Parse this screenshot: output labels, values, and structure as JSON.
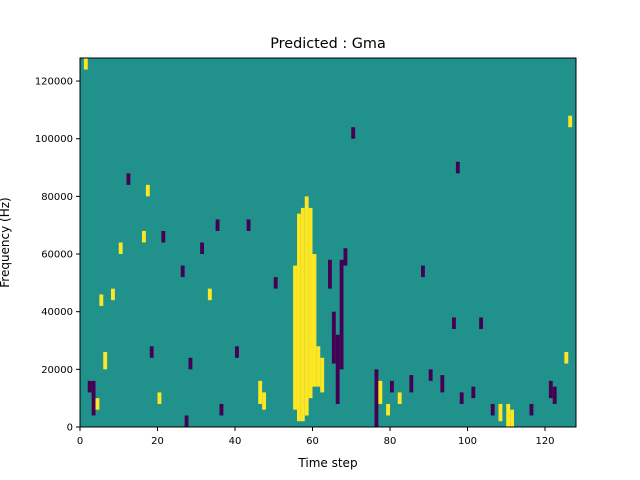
{
  "chart_data": {
    "type": "heatmap",
    "title": "Predicted : Gma",
    "xlabel": "Time step",
    "ylabel": "Frequency (Hz)",
    "xlim": [
      0,
      128
    ],
    "ylim": [
      0,
      128000
    ],
    "x_ticks": [
      0,
      20,
      40,
      60,
      80,
      100,
      120
    ],
    "y_ticks": [
      0,
      20000,
      40000,
      60000,
      80000,
      100000,
      120000
    ],
    "x_tick_labels": [
      "0",
      "20",
      "40",
      "60",
      "80",
      "100",
      "120"
    ],
    "y_tick_labels": [
      "0",
      "20000",
      "40000",
      "60000",
      "80000",
      "100000",
      "120000"
    ],
    "grid": false,
    "colormap": "viridis",
    "background_value": 0,
    "colors": {
      "background": "#21918c",
      "high": "#fde725",
      "low": "#440154"
    },
    "levels": [
      -1,
      0,
      1
    ],
    "time_bins": 128,
    "freq_bin_hz": 2000,
    "cells": [
      {
        "t": 1,
        "f_from": 124000,
        "f_to": 128000,
        "v": 1
      },
      {
        "t": 2,
        "f_from": 12000,
        "f_to": 16000,
        "v": -1
      },
      {
        "t": 3,
        "f_from": 4000,
        "f_to": 16000,
        "v": -1
      },
      {
        "t": 4,
        "f_from": 6000,
        "f_to": 10000,
        "v": 1
      },
      {
        "t": 5,
        "f_from": 42000,
        "f_to": 46000,
        "v": 1
      },
      {
        "t": 6,
        "f_from": 20000,
        "f_to": 26000,
        "v": 1
      },
      {
        "t": 8,
        "f_from": 44000,
        "f_to": 48000,
        "v": 1
      },
      {
        "t": 10,
        "f_from": 60000,
        "f_to": 64000,
        "v": 1
      },
      {
        "t": 12,
        "f_from": 84000,
        "f_to": 88000,
        "v": -1
      },
      {
        "t": 16,
        "f_from": 64000,
        "f_to": 68000,
        "v": 1
      },
      {
        "t": 17,
        "f_from": 80000,
        "f_to": 84000,
        "v": 1
      },
      {
        "t": 18,
        "f_from": 24000,
        "f_to": 28000,
        "v": -1
      },
      {
        "t": 20,
        "f_from": 8000,
        "f_to": 12000,
        "v": 1
      },
      {
        "t": 21,
        "f_from": 64000,
        "f_to": 68000,
        "v": -1
      },
      {
        "t": 26,
        "f_from": 52000,
        "f_to": 56000,
        "v": -1
      },
      {
        "t": 27,
        "f_from": 0,
        "f_to": 4000,
        "v": -1
      },
      {
        "t": 28,
        "f_from": 20000,
        "f_to": 24000,
        "v": -1
      },
      {
        "t": 31,
        "f_from": 60000,
        "f_to": 64000,
        "v": -1
      },
      {
        "t": 33,
        "f_from": 44000,
        "f_to": 48000,
        "v": 1
      },
      {
        "t": 35,
        "f_from": 68000,
        "f_to": 72000,
        "v": -1
      },
      {
        "t": 36,
        "f_from": 4000,
        "f_to": 8000,
        "v": -1
      },
      {
        "t": 40,
        "f_from": 24000,
        "f_to": 28000,
        "v": -1
      },
      {
        "t": 43,
        "f_from": 68000,
        "f_to": 72000,
        "v": -1
      },
      {
        "t": 46,
        "f_from": 8000,
        "f_to": 16000,
        "v": 1
      },
      {
        "t": 47,
        "f_from": 6000,
        "f_to": 12000,
        "v": 1
      },
      {
        "t": 50,
        "f_from": 48000,
        "f_to": 52000,
        "v": -1
      },
      {
        "t": 55,
        "f_from": 6000,
        "f_to": 56000,
        "v": 1
      },
      {
        "t": 56,
        "f_from": 2000,
        "f_to": 74000,
        "v": 1
      },
      {
        "t": 57,
        "f_from": 2000,
        "f_to": 76000,
        "v": 1
      },
      {
        "t": 58,
        "f_from": 4000,
        "f_to": 80000,
        "v": 1
      },
      {
        "t": 59,
        "f_from": 10000,
        "f_to": 76000,
        "v": 1
      },
      {
        "t": 60,
        "f_from": 14000,
        "f_to": 60000,
        "v": 1
      },
      {
        "t": 61,
        "f_from": 14000,
        "f_to": 28000,
        "v": 1
      },
      {
        "t": 62,
        "f_from": 12000,
        "f_to": 24000,
        "v": 1
      },
      {
        "t": 64,
        "f_from": 48000,
        "f_to": 58000,
        "v": -1
      },
      {
        "t": 65,
        "f_from": 22000,
        "f_to": 40000,
        "v": -1
      },
      {
        "t": 66,
        "f_from": 8000,
        "f_to": 32000,
        "v": -1
      },
      {
        "t": 67,
        "f_from": 20000,
        "f_to": 58000,
        "v": -1
      },
      {
        "t": 68,
        "f_from": 56000,
        "f_to": 62000,
        "v": -1
      },
      {
        "t": 70,
        "f_from": 100000,
        "f_to": 104000,
        "v": -1
      },
      {
        "t": 76,
        "f_from": 0,
        "f_to": 20000,
        "v": -1
      },
      {
        "t": 77,
        "f_from": 8000,
        "f_to": 16000,
        "v": 1
      },
      {
        "t": 79,
        "f_from": 4000,
        "f_to": 8000,
        "v": 1
      },
      {
        "t": 80,
        "f_from": 12000,
        "f_to": 16000,
        "v": -1
      },
      {
        "t": 82,
        "f_from": 8000,
        "f_to": 12000,
        "v": 1
      },
      {
        "t": 85,
        "f_from": 12000,
        "f_to": 18000,
        "v": -1
      },
      {
        "t": 88,
        "f_from": 52000,
        "f_to": 56000,
        "v": -1
      },
      {
        "t": 90,
        "f_from": 16000,
        "f_to": 20000,
        "v": -1
      },
      {
        "t": 93,
        "f_from": 12000,
        "f_to": 18000,
        "v": -1
      },
      {
        "t": 96,
        "f_from": 34000,
        "f_to": 38000,
        "v": -1
      },
      {
        "t": 97,
        "f_from": 88000,
        "f_to": 92000,
        "v": -1
      },
      {
        "t": 98,
        "f_from": 8000,
        "f_to": 12000,
        "v": -1
      },
      {
        "t": 101,
        "f_from": 10000,
        "f_to": 14000,
        "v": -1
      },
      {
        "t": 103,
        "f_from": 34000,
        "f_to": 38000,
        "v": -1
      },
      {
        "t": 106,
        "f_from": 4000,
        "f_to": 8000,
        "v": -1
      },
      {
        "t": 108,
        "f_from": 2000,
        "f_to": 8000,
        "v": 1
      },
      {
        "t": 110,
        "f_from": 0,
        "f_to": 8000,
        "v": 1
      },
      {
        "t": 111,
        "f_from": 0,
        "f_to": 6000,
        "v": 1
      },
      {
        "t": 116,
        "f_from": 4000,
        "f_to": 8000,
        "v": -1
      },
      {
        "t": 121,
        "f_from": 10000,
        "f_to": 16000,
        "v": -1
      },
      {
        "t": 122,
        "f_from": 8000,
        "f_to": 14000,
        "v": -1
      },
      {
        "t": 125,
        "f_from": 22000,
        "f_to": 26000,
        "v": 1
      },
      {
        "t": 126,
        "f_from": 104000,
        "f_to": 108000,
        "v": 1
      }
    ]
  }
}
